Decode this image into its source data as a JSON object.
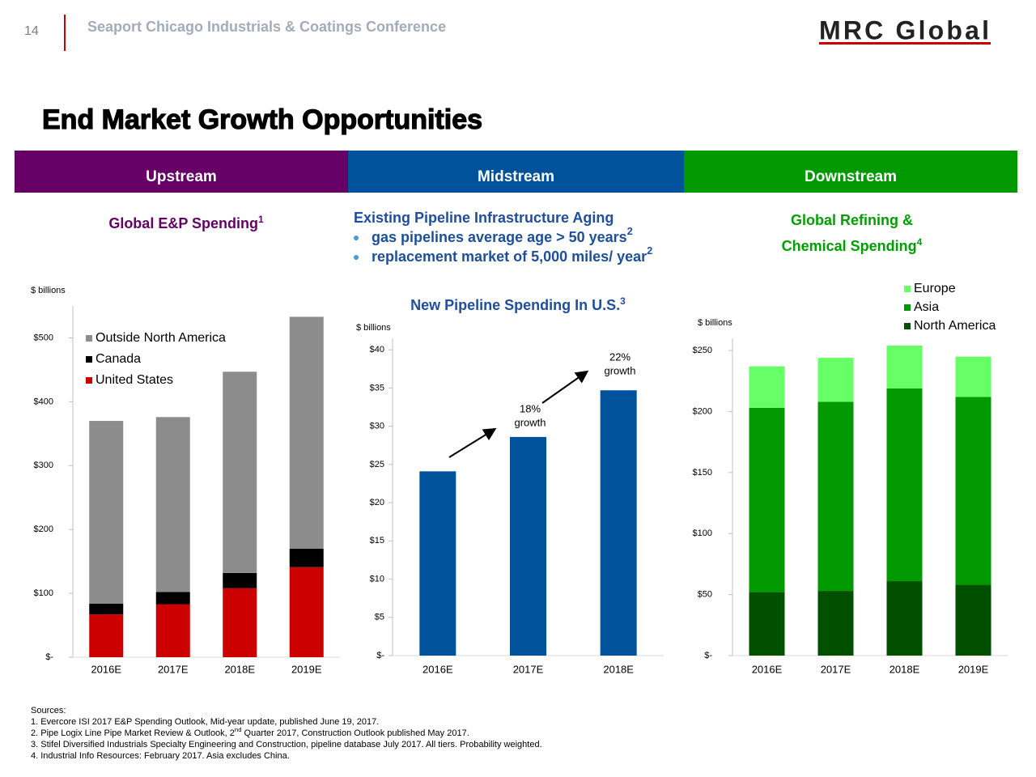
{
  "page": {
    "slide_number": "14",
    "conference": "Seaport Chicago Industrials & Coatings Conference",
    "logo": "MRC Global",
    "heading": "End Market Growth Opportunities",
    "segments": [
      {
        "name": "Upstream",
        "color": "#660066"
      },
      {
        "name": "Midstream",
        "color": "#00529b"
      },
      {
        "name": "Downstream",
        "color": "#009900"
      }
    ],
    "midstream": {
      "heading": "Existing Pipeline Infrastructure Aging",
      "bullets": [
        {
          "text": "gas pipelines average age  > 50 years",
          "sup": "2"
        },
        {
          "text": "replacement market of 5,000 miles/ year",
          "sup": "2"
        }
      ]
    },
    "sources": {
      "title": "Sources:",
      "items": [
        {
          "text": "1. Evercore ISI 2017 E&P Spending Outlook, Mid-year update, published June 19, 2017."
        },
        {
          "text": "2. Pipe Logix Line Pipe Market Review & Outlook, 2",
          "sup": "nd",
          "rest": " Quarter 2017, Construction Outlook published May 2017."
        },
        {
          "text": "3. Stifel Diversified Industrials Specialty Engineering and Construction, pipeline database July 2017. All tiers. Probability weighted."
        },
        {
          "text": "4. Industrial Info Resources: February 2017. Asia excludes China."
        }
      ]
    }
  },
  "chart_data": [
    {
      "type": "bar",
      "stacked": true,
      "title": "Global E&P Spending",
      "title_sup": "1",
      "title_color": "#660066",
      "units_label": "$ billions",
      "categories": [
        "2016E",
        "2017E",
        "2018E",
        "2019E"
      ],
      "series": [
        {
          "name": "United States",
          "color": "#cc0000",
          "values": [
            67,
            83,
            108,
            141
          ]
        },
        {
          "name": "Canada",
          "color": "#000000",
          "values": [
            17,
            19,
            24,
            29
          ]
        },
        {
          "name": "Outside North America",
          "color": "#8c8c8c",
          "values": [
            286,
            274,
            315,
            363
          ]
        }
      ],
      "ylim": [
        0,
        550
      ],
      "yticks": [
        {
          "value": 0,
          "label": "$-"
        },
        {
          "value": 100,
          "label": "$100"
        },
        {
          "value": 200,
          "label": "$200"
        },
        {
          "value": 300,
          "label": "$300"
        },
        {
          "value": 400,
          "label": "$400"
        },
        {
          "value": 500,
          "label": "$500"
        }
      ],
      "legend": "upper left"
    },
    {
      "type": "bar",
      "title": "New Pipeline Spending In U.S.",
      "title_sup": "3",
      "title_color": "#1f4ea0",
      "units_label": "$ billions",
      "categories": [
        "2016E",
        "2017E",
        "2018E"
      ],
      "values": [
        24.1,
        28.6,
        34.7
      ],
      "color": "#00529b",
      "ylim": [
        0,
        41.5
      ],
      "yticks": [
        {
          "value": 0,
          "label": "$-"
        },
        {
          "value": 5,
          "label": "$5"
        },
        {
          "value": 10,
          "label": "$10"
        },
        {
          "value": 15,
          "label": "$15"
        },
        {
          "value": 20,
          "label": "$20"
        },
        {
          "value": 25,
          "label": "$25"
        },
        {
          "value": 30,
          "label": "$30"
        },
        {
          "value": 35,
          "label": "$35"
        },
        {
          "value": 40,
          "label": "$40"
        }
      ],
      "annotations": [
        {
          "lines": [
            "18%",
            "growth"
          ]
        },
        {
          "lines": [
            "22%",
            "growth"
          ]
        }
      ]
    },
    {
      "type": "bar",
      "stacked": true,
      "title": "Global Refining & Chemical Spending",
      "title_sup": "4",
      "title_color": "#00a000",
      "units_label": "$ billions",
      "categories": [
        "2016E",
        "2017E",
        "2018E",
        "2019E"
      ],
      "series": [
        {
          "name": "North America",
          "color": "#005000",
          "values": [
            52,
            53,
            61,
            58
          ]
        },
        {
          "name": "Asia",
          "color": "#009900",
          "values": [
            151,
            155,
            158,
            154
          ]
        },
        {
          "name": "Europe",
          "color": "#66ff66",
          "values": [
            34,
            36,
            35,
            33
          ]
        }
      ],
      "ylim": [
        0,
        260
      ],
      "yticks": [
        {
          "value": 0,
          "label": "$-"
        },
        {
          "value": 50,
          "label": "$50"
        },
        {
          "value": 100,
          "label": "$100"
        },
        {
          "value": 150,
          "label": "$150"
        },
        {
          "value": 200,
          "label": "$200"
        },
        {
          "value": 250,
          "label": "$250"
        }
      ],
      "legend": "upper right"
    }
  ]
}
